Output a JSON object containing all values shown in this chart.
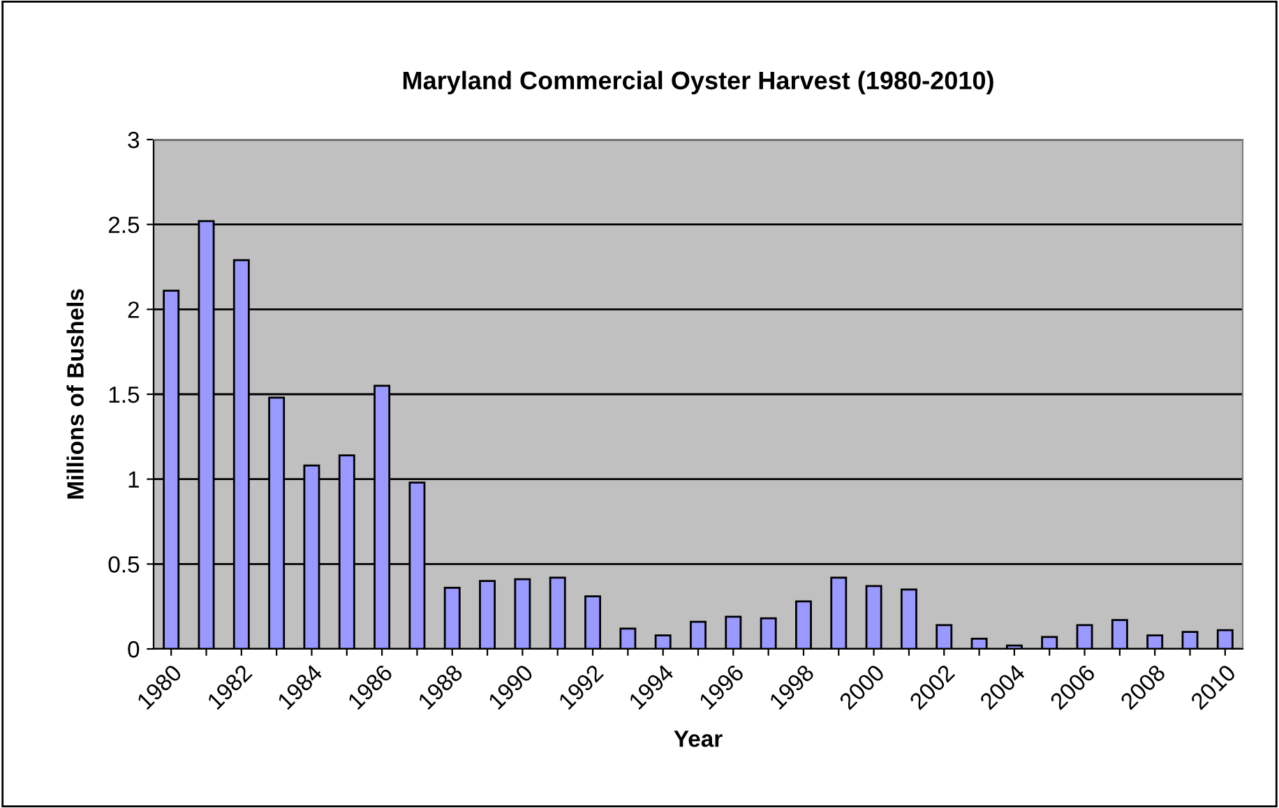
{
  "chart_data": {
    "type": "bar",
    "title": "Maryland Commercial Oyster Harvest (1980-2010)",
    "xlabel": "Year",
    "ylabel": "Millions of Bushels",
    "categories": [
      "1980",
      null,
      "1982",
      null,
      "1984",
      null,
      "1986",
      null,
      "1988",
      null,
      "1990",
      null,
      "1992",
      null,
      "1994",
      null,
      "1996",
      null,
      "1998",
      null,
      "2000",
      null,
      "2002",
      null,
      "2004",
      null,
      "2006",
      null,
      "2008",
      null,
      "2010"
    ],
    "values": [
      2.11,
      2.52,
      2.29,
      1.48,
      1.08,
      1.14,
      1.55,
      0.98,
      0.36,
      0.4,
      0.41,
      0.42,
      0.31,
      0.12,
      0.08,
      0.16,
      0.19,
      0.18,
      0.28,
      0.42,
      0.37,
      0.35,
      0.14,
      0.06,
      0.02,
      0.07,
      0.14,
      0.17,
      0.08,
      0.1,
      0.11
    ],
    "color": "#9999ff",
    "ylim": [
      0,
      3
    ],
    "yticks": [
      0,
      0.5,
      1,
      1.5,
      2,
      2.5,
      3
    ],
    "grid": "y",
    "legend": false
  }
}
